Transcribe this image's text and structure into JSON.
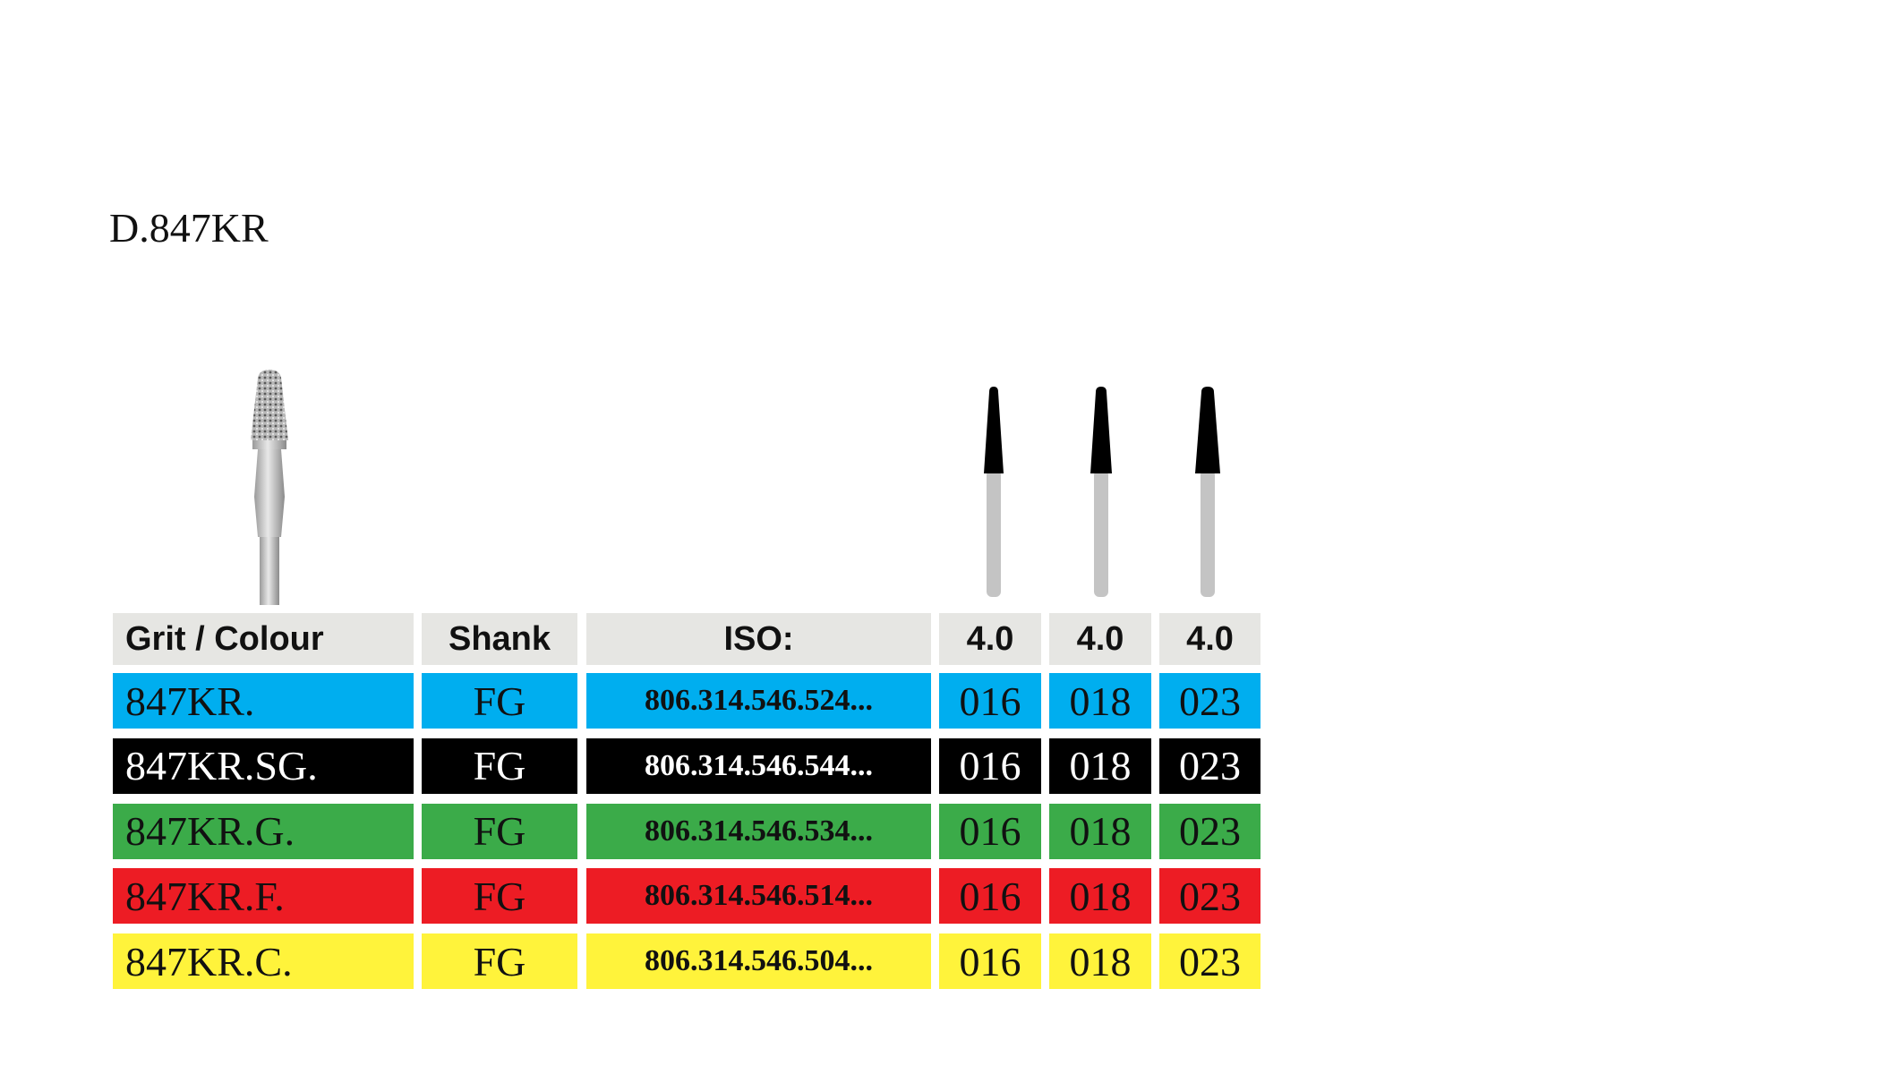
{
  "title": "D.847KR",
  "table": {
    "header": [
      "Grit / Colour",
      "Shank",
      "ISO:",
      "4.0",
      "4.0",
      "4.0"
    ],
    "rows": [
      {
        "cells": [
          "847KR.",
          "FG",
          "806.314.546.524...",
          "016",
          "018",
          "023"
        ],
        "background": "#00aeef",
        "text_color": "#111111"
      },
      {
        "cells": [
          "847KR.SG.",
          "FG",
          "806.314.546.544...",
          "016",
          "018",
          "023"
        ],
        "background": "#000000",
        "text_color": "#ffffff"
      },
      {
        "cells": [
          "847KR.G.",
          "FG",
          "806.314.546.534...",
          "016",
          "018",
          "023"
        ],
        "background": "#3bab49",
        "text_color": "#111111"
      },
      {
        "cells": [
          "847KR.F.",
          "FG",
          "806.314.546.514...",
          "016",
          "018",
          "023"
        ],
        "background": "#ed1c24",
        "text_color": "#111111"
      },
      {
        "cells": [
          "847KR.C.",
          "FG",
          "806.314.546.504...",
          "016",
          "018",
          "023"
        ],
        "background": "#fff33b",
        "text_color": "#111111"
      }
    ]
  }
}
